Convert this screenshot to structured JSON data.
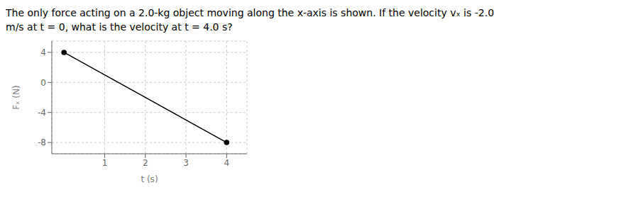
{
  "chart_data": {
    "type": "line",
    "title": "The only force acting on a 2.0-kg object moving along the x-axis is shown. If the velocity vₓ is -2.0",
    "subtitle": "m/s at t = 0, what is the velocity at t = 4.0 s?",
    "xlabel": "t (s)",
    "ylabel": "Fₓ (N)",
    "x": [
      0,
      4
    ],
    "values": [
      4,
      -8
    ],
    "color": "#000000",
    "marker": "circle",
    "xlim": [
      -0.3,
      4.5
    ],
    "ylim": [
      -9.5,
      5.5
    ],
    "xticks": [
      1,
      2,
      3,
      4
    ],
    "yticks": [
      -8,
      -4,
      0,
      4
    ],
    "grid": true
  }
}
